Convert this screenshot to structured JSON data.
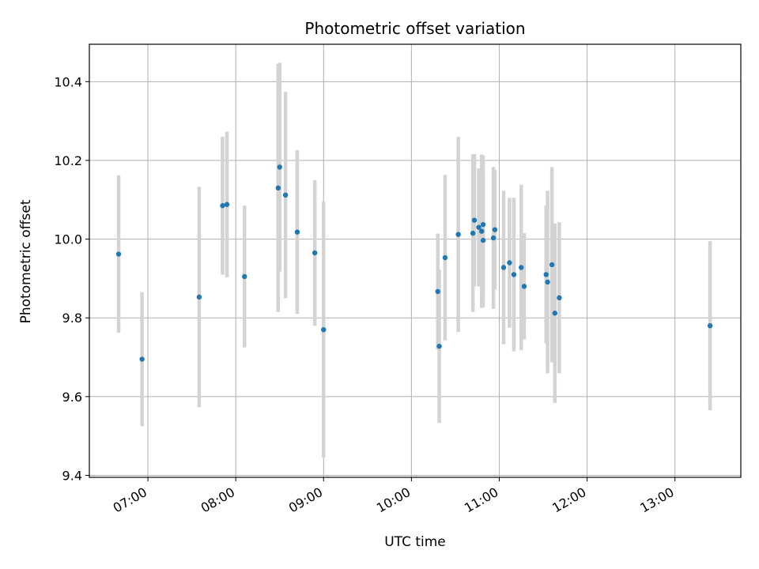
{
  "chart_data": {
    "type": "scatter",
    "title": "Photometric offset variation",
    "xlabel": "UTC time",
    "ylabel": "Photometric offset",
    "xlim": [
      "06:20",
      "13:45"
    ],
    "ylim": [
      9.395,
      10.495
    ],
    "x_ticks": [
      "07:00",
      "08:00",
      "09:00",
      "10:00",
      "11:00",
      "12:00",
      "13:00"
    ],
    "y_ticks": [
      "9.4",
      "9.6",
      "9.8",
      "10.0",
      "10.2",
      "10.4"
    ],
    "grid": true,
    "marker_color": "#1f77b4",
    "errorbar_color": "#d3d3d3",
    "points": [
      {
        "x": "06:40",
        "y": 9.962,
        "err": 0.2
      },
      {
        "x": "06:56",
        "y": 9.695,
        "err": 0.17
      },
      {
        "x": "07:35",
        "y": 9.853,
        "err": 0.28
      },
      {
        "x": "07:51",
        "y": 10.085,
        "err": 0.175
      },
      {
        "x": "07:54",
        "y": 10.088,
        "err": 0.185
      },
      {
        "x": "08:06",
        "y": 9.905,
        "err": 0.18
      },
      {
        "x": "08:29",
        "y": 10.13,
        "err": 0.315
      },
      {
        "x": "08:30",
        "y": 10.183,
        "err": 0.265
      },
      {
        "x": "08:34",
        "y": 10.112,
        "err": 0.262
      },
      {
        "x": "08:42",
        "y": 10.018,
        "err": 0.208
      },
      {
        "x": "08:54",
        "y": 9.965,
        "err": 0.185
      },
      {
        "x": "09:00",
        "y": 9.77,
        "err": 0.325
      },
      {
        "x": "10:18",
        "y": 9.867,
        "err": 0.147
      },
      {
        "x": "10:19",
        "y": 9.728,
        "err": 0.195
      },
      {
        "x": "10:23",
        "y": 9.953,
        "err": 0.21
      },
      {
        "x": "10:32",
        "y": 10.012,
        "err": 0.248
      },
      {
        "x": "10:42",
        "y": 10.015,
        "err": 0.2
      },
      {
        "x": "10:43",
        "y": 10.048,
        "err": 0.168
      },
      {
        "x": "10:46",
        "y": 10.03,
        "err": 0.15
      },
      {
        "x": "10:48",
        "y": 10.02,
        "err": 0.195
      },
      {
        "x": "10:49",
        "y": 9.997,
        "err": 0.17
      },
      {
        "x": "10:49",
        "y": 10.037,
        "err": 0.175
      },
      {
        "x": "10:56",
        "y": 10.003,
        "err": 0.18
      },
      {
        "x": "10:57",
        "y": 10.024,
        "err": 0.152
      },
      {
        "x": "11:03",
        "y": 9.928,
        "err": 0.195
      },
      {
        "x": "11:07",
        "y": 9.94,
        "err": 0.165
      },
      {
        "x": "11:10",
        "y": 9.91,
        "err": 0.195
      },
      {
        "x": "11:15",
        "y": 9.928,
        "err": 0.21
      },
      {
        "x": "11:17",
        "y": 9.88,
        "err": 0.135
      },
      {
        "x": "11:32",
        "y": 9.91,
        "err": 0.175
      },
      {
        "x": "11:33",
        "y": 9.891,
        "err": 0.232
      },
      {
        "x": "11:36",
        "y": 9.935,
        "err": 0.248
      },
      {
        "x": "11:38",
        "y": 9.812,
        "err": 0.228
      },
      {
        "x": "11:41",
        "y": 9.851,
        "err": 0.192
      },
      {
        "x": "13:24",
        "y": 9.78,
        "err": 0.215
      }
    ]
  }
}
